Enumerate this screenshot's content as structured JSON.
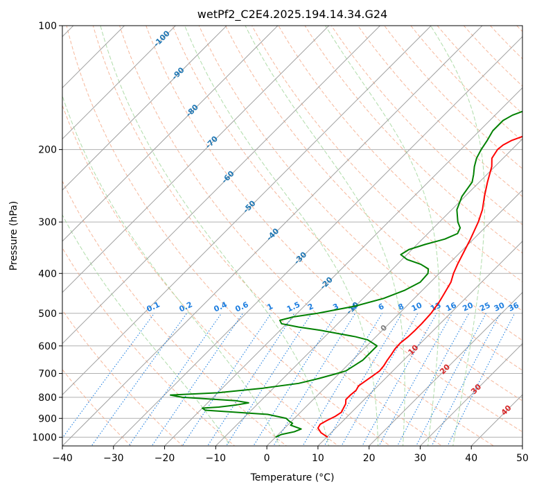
{
  "chart_data": {
    "type": "line",
    "title": "wetPf2_C2E4.2025.194.14.34.G24",
    "xlabel": "Temperature (°C)",
    "ylabel": "Pressure (hPa)",
    "xlim": [
      -40,
      50
    ],
    "ylim": [
      1050,
      100
    ],
    "y_scale": "log",
    "skew": true,
    "grid": true,
    "x_ticks": [
      -40,
      -30,
      -20,
      -10,
      0,
      10,
      20,
      30,
      40,
      50
    ],
    "x_tick_labels": [
      "−40",
      "−30",
      "−20",
      "−10",
      "0",
      "10",
      "20",
      "30",
      "40",
      "50"
    ],
    "y_ticks": [
      1000,
      900,
      800,
      700,
      600,
      500,
      400,
      300,
      200,
      100
    ],
    "y_tick_labels": [
      "1000",
      "900",
      "800",
      "700",
      "600",
      "500",
      "400",
      "300",
      "200",
      "100"
    ],
    "colors": {
      "temperature": "#ff0000",
      "dewpoint": "#008000",
      "isotherm": "#a0a0a0",
      "dry_adiabat": "#f4a582",
      "moist_adiabat": "#a6d8a0",
      "mixing_ratio": "#1f7fe0",
      "label_blue": "#1f77b4",
      "label_red": "#d62728",
      "label_gray": "#7f7f7f",
      "grid": "#b0b0b0"
    },
    "series": [
      {
        "key": "temperature",
        "points": [
          [
            1000,
            10.2
          ],
          [
            975,
            8.0
          ],
          [
            950,
            6.5
          ],
          [
            930,
            6.2
          ],
          [
            910,
            6.8
          ],
          [
            890,
            7.6
          ],
          [
            870,
            8.0
          ],
          [
            850,
            7.6
          ],
          [
            830,
            7.2
          ],
          [
            810,
            6.4
          ],
          [
            790,
            6.4
          ],
          [
            770,
            6.6
          ],
          [
            750,
            6.2
          ],
          [
            730,
            6.6
          ],
          [
            710,
            7.0
          ],
          [
            690,
            7.4
          ],
          [
            670,
            7.2
          ],
          [
            650,
            6.8
          ],
          [
            630,
            6.5
          ],
          [
            610,
            6.1
          ],
          [
            590,
            6.0
          ],
          [
            570,
            6.3
          ],
          [
            550,
            6.4
          ],
          [
            530,
            6.4
          ],
          [
            500,
            6.2
          ],
          [
            470,
            5.6
          ],
          [
            450,
            5.0
          ],
          [
            420,
            4.0
          ],
          [
            400,
            2.8
          ],
          [
            380,
            1.8
          ],
          [
            350,
            0.4
          ],
          [
            330,
            -0.6
          ],
          [
            300,
            -2.4
          ],
          [
            280,
            -4.0
          ],
          [
            260,
            -6.2
          ],
          [
            240,
            -8.4
          ],
          [
            220,
            -10.6
          ],
          [
            210,
            -12.2
          ],
          [
            200,
            -12.8
          ],
          [
            195,
            -12.6
          ],
          [
            190,
            -11.8
          ],
          [
            185,
            -10.2
          ],
          [
            180,
            -7.8
          ],
          [
            175,
            -5.6
          ],
          [
            170,
            -4.6
          ],
          [
            165,
            -4.0
          ],
          [
            160,
            -3.0
          ],
          [
            150,
            -0.8
          ],
          [
            140,
            1.6
          ],
          [
            130,
            4.0
          ],
          [
            120,
            6.6
          ],
          [
            110,
            9.2
          ],
          [
            100,
            12.0
          ]
        ]
      },
      {
        "key": "dewpoint",
        "points": [
          [
            1000,
            0.0
          ],
          [
            985,
            0.6
          ],
          [
            970,
            2.6
          ],
          [
            955,
            3.4
          ],
          [
            945,
            2.0
          ],
          [
            935,
            0.6
          ],
          [
            925,
            0.6
          ],
          [
            915,
            -0.4
          ],
          [
            900,
            -1.6
          ],
          [
            880,
            -6.0
          ],
          [
            860,
            -19.0
          ],
          [
            850,
            -20.0
          ],
          [
            845,
            -17.0
          ],
          [
            835,
            -14.0
          ],
          [
            825,
            -12.0
          ],
          [
            815,
            -15.0
          ],
          [
            800,
            -26.0
          ],
          [
            790,
            -28.8
          ],
          [
            780,
            -20.0
          ],
          [
            760,
            -12.0
          ],
          [
            740,
            -6.0
          ],
          [
            720,
            -3.0
          ],
          [
            700,
            -0.4
          ],
          [
            690,
            0.8
          ],
          [
            670,
            1.4
          ],
          [
            650,
            2.0
          ],
          [
            620,
            2.0
          ],
          [
            600,
            2.0
          ],
          [
            580,
            -1.0
          ],
          [
            570,
            -4.0
          ],
          [
            560,
            -8.0
          ],
          [
            550,
            -12.0
          ],
          [
            540,
            -17.0
          ],
          [
            530,
            -21.0
          ],
          [
            520,
            -22.0
          ],
          [
            510,
            -20.0
          ],
          [
            500,
            -16.0
          ],
          [
            480,
            -10.0
          ],
          [
            460,
            -6.0
          ],
          [
            440,
            -3.5
          ],
          [
            420,
            -2.0
          ],
          [
            400,
            -2.2
          ],
          [
            390,
            -3.0
          ],
          [
            380,
            -5.4
          ],
          [
            370,
            -9.0
          ],
          [
            360,
            -11.2
          ],
          [
            350,
            -10.6
          ],
          [
            340,
            -8.4
          ],
          [
            330,
            -5.6
          ],
          [
            320,
            -4.2
          ],
          [
            310,
            -4.8
          ],
          [
            300,
            -6.4
          ],
          [
            280,
            -9.0
          ],
          [
            260,
            -10.6
          ],
          [
            250,
            -11.0
          ],
          [
            240,
            -11.4
          ],
          [
            230,
            -12.6
          ],
          [
            220,
            -14.0
          ],
          [
            210,
            -15.2
          ],
          [
            200,
            -16.0
          ],
          [
            190,
            -16.6
          ],
          [
            180,
            -17.4
          ],
          [
            170,
            -17.4
          ],
          [
            165,
            -16.6
          ],
          [
            160,
            -14.8
          ],
          [
            155,
            -13.6
          ],
          [
            150,
            -12.4
          ],
          [
            140,
            -10.0
          ],
          [
            130,
            -7.4
          ],
          [
            120,
            -4.8
          ],
          [
            110,
            -1.8
          ],
          [
            100,
            1.2
          ]
        ]
      }
    ],
    "isotherms": [
      -150,
      -140,
      -130,
      -120,
      -110,
      -100,
      -90,
      -80,
      -70,
      -60,
      -50,
      -40,
      -30,
      -20,
      -10,
      0,
      10,
      20,
      30,
      40,
      50
    ],
    "isotherm_labels": [
      {
        "p": 107,
        "text": "-100"
      },
      {
        "p": 130,
        "text": "-90"
      },
      {
        "p": 160,
        "text": "-80"
      },
      {
        "p": 191,
        "text": "-70"
      },
      {
        "p": 232,
        "text": "-60"
      },
      {
        "p": 274,
        "text": "-50"
      },
      {
        "p": 320,
        "text": "-40"
      },
      {
        "p": 365,
        "text": "-30"
      },
      {
        "p": 420,
        "text": "-20"
      },
      {
        "p": 483,
        "text": "-10"
      }
    ],
    "isotherm_labels_lower": [
      {
        "t": 0,
        "p": 540,
        "text": "0",
        "tone": "gray"
      },
      {
        "t": 10,
        "p": 610,
        "text": "10",
        "tone": "red"
      },
      {
        "t": 20,
        "p": 680,
        "text": "20",
        "tone": "red"
      },
      {
        "t": 30,
        "p": 760,
        "text": "30",
        "tone": "red"
      },
      {
        "t": 40,
        "p": 855,
        "text": "40",
        "tone": "red"
      }
    ],
    "dry_adiabats_thetaC": [
      -30,
      -20,
      -10,
      0,
      10,
      20,
      30,
      40,
      50,
      60,
      70,
      80,
      90,
      100,
      110,
      120,
      130,
      140,
      150,
      160,
      170,
      180,
      190,
      200,
      220,
      240
    ],
    "moist_adiabats_C": [
      -10,
      0,
      10,
      20,
      25,
      30,
      35
    ],
    "mixing_ratios": [
      0.1,
      0.2,
      0.4,
      0.6,
      1,
      1.5,
      2,
      3,
      4,
      6,
      8,
      10,
      13,
      16,
      20,
      25,
      30,
      36
    ],
    "mixing_ratio_labels": [
      "0.1",
      "0.2",
      "0.4",
      "0.6",
      "1",
      "1.5",
      "2",
      "3",
      "4",
      "6",
      "8",
      "10",
      "13",
      "16",
      "20",
      "25",
      "30",
      "36"
    ]
  }
}
